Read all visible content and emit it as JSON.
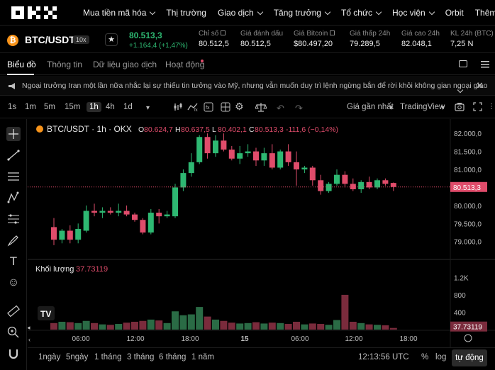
{
  "nav": {
    "logo": "OKX",
    "items": [
      {
        "label": "Mua tiền mã hóa",
        "dropdown": true
      },
      {
        "label": "Thị trường",
        "dropdown": false
      },
      {
        "label": "Giao dịch",
        "dropdown": true
      },
      {
        "label": "Tăng trưởng",
        "dropdown": true
      },
      {
        "label": "Tổ chức",
        "dropdown": true
      },
      {
        "label": "Học viện",
        "dropdown": true
      },
      {
        "label": "Orbit",
        "dropdown": false
      },
      {
        "label": "Thêm",
        "dropdown": true
      }
    ]
  },
  "ticker": {
    "coin_glyph": "₿",
    "pair": "BTC/USDT",
    "leverage": "10x",
    "price": "80.513,3",
    "change": "+1.164,4 (+1,47%)",
    "stats": [
      {
        "label": "Chỉ số",
        "value": "80.512,5",
        "ext": true
      },
      {
        "label": "Giá đánh dấu",
        "value": "80.512,5",
        "ext": false
      },
      {
        "label": "Giá Bitcoin",
        "value": "$80.497,20",
        "ext": true
      },
      {
        "label": "Giá thấp 24h",
        "value": "79.289,5",
        "ext": false
      },
      {
        "label": "Giá cao 24h",
        "value": "82.048,1",
        "ext": false
      },
      {
        "label": "KL 24h (BTC)",
        "value": "7,25 N",
        "ext": false
      }
    ],
    "accent_up": "#2eb872",
    "accent_down": "#e04c6b"
  },
  "tabs": [
    "Biểu đồ",
    "Thông tin",
    "Dữ liệu giao dịch",
    "Hoạt động"
  ],
  "announcement": "Ngoại trưởng Iran một lần nữa nhắc lại sự thiếu tin tưởng vào Mỹ, nhưng vẫn muốn duy trì lệnh ngừng bắn để rời khỏi không gian ngoại giao",
  "toolbar": {
    "timeframes": [
      "1s",
      "1m",
      "5m",
      "15m",
      "1h",
      "4h",
      "1d"
    ],
    "selected": "1h",
    "price_type": "Giá gần nhất",
    "view": "TradingView"
  },
  "legend": {
    "symbol": "BTC/USDT · 1h · OKX",
    "o_label": "O",
    "o": "80.624,7",
    "h_label": "H",
    "h": "80.637,5",
    "l_label": "L",
    "l": "80.402,1",
    "c_label": "C",
    "c": "80.513,3",
    "chg": "-111,6 (−0,14%)"
  },
  "volume_legend": {
    "label": "Khối lượng",
    "value": "37.73119"
  },
  "price_axis": [
    "82.000,0",
    "81.500,0",
    "81.000,0",
    "80.000,0",
    "79.500,0",
    "79.000,0"
  ],
  "last_price": "80.513,3",
  "volume_axis": [
    "1.2K",
    "800",
    "400"
  ],
  "last_volume": "37.73119",
  "time_axis": [
    "06:00",
    "12:00",
    "18:00",
    "15",
    "06:00",
    "12:00",
    "18:00"
  ],
  "tv_logo": "TV",
  "chart_data": {
    "type": "candlestick",
    "interval": "1h",
    "ylim": [
      78700,
      82200
    ],
    "volume_ylim": [
      0,
      1500
    ],
    "candles": [
      {
        "o": 79400,
        "h": 79650,
        "l": 78900,
        "c": 79050,
        "v": 150
      },
      {
        "o": 79050,
        "h": 79350,
        "l": 78950,
        "c": 79300,
        "v": 180
      },
      {
        "o": 79300,
        "h": 79450,
        "l": 78950,
        "c": 79050,
        "v": 170
      },
      {
        "o": 79050,
        "h": 79500,
        "l": 78950,
        "c": 79350,
        "v": 150
      },
      {
        "o": 79300,
        "h": 80000,
        "l": 79250,
        "c": 79850,
        "v": 200
      },
      {
        "o": 79850,
        "h": 80050,
        "l": 79700,
        "c": 79800,
        "v": 150
      },
      {
        "o": 79800,
        "h": 79950,
        "l": 79650,
        "c": 79850,
        "v": 120
      },
      {
        "o": 79850,
        "h": 79950,
        "l": 79750,
        "c": 79800,
        "v": 110
      },
      {
        "o": 79800,
        "h": 80050,
        "l": 79700,
        "c": 79850,
        "v": 130
      },
      {
        "o": 79850,
        "h": 80000,
        "l": 79700,
        "c": 79750,
        "v": 160
      },
      {
        "o": 79750,
        "h": 79800,
        "l": 79550,
        "c": 79600,
        "v": 180
      },
      {
        "o": 79600,
        "h": 79650,
        "l": 79200,
        "c": 79250,
        "v": 200
      },
      {
        "o": 79250,
        "h": 79900,
        "l": 79200,
        "c": 79800,
        "v": 230
      },
      {
        "o": 79800,
        "h": 79900,
        "l": 79500,
        "c": 79700,
        "v": 210
      },
      {
        "o": 79700,
        "h": 79850,
        "l": 79650,
        "c": 79750,
        "v": 150
      },
      {
        "o": 79700,
        "h": 80600,
        "l": 79650,
        "c": 80500,
        "v": 420
      },
      {
        "o": 80500,
        "h": 81000,
        "l": 80400,
        "c": 80900,
        "v": 330
      },
      {
        "o": 80900,
        "h": 81450,
        "l": 80800,
        "c": 81200,
        "v": 350
      },
      {
        "o": 81200,
        "h": 81950,
        "l": 81150,
        "c": 81900,
        "v": 520
      },
      {
        "o": 81900,
        "h": 82000,
        "l": 81300,
        "c": 81450,
        "v": 300
      },
      {
        "o": 81450,
        "h": 81950,
        "l": 81350,
        "c": 81800,
        "v": 230
      },
      {
        "o": 81800,
        "h": 82000,
        "l": 81500,
        "c": 81550,
        "v": 200
      },
      {
        "o": 81550,
        "h": 81650,
        "l": 81250,
        "c": 81300,
        "v": 160
      },
      {
        "o": 81300,
        "h": 81650,
        "l": 81150,
        "c": 81450,
        "v": 140
      },
      {
        "o": 81450,
        "h": 81700,
        "l": 81350,
        "c": 81500,
        "v": 150
      },
      {
        "o": 81500,
        "h": 81600,
        "l": 81100,
        "c": 81250,
        "v": 170
      },
      {
        "o": 81250,
        "h": 81600,
        "l": 81100,
        "c": 81450,
        "v": 140
      },
      {
        "o": 81450,
        "h": 81700,
        "l": 81000,
        "c": 81050,
        "v": 160
      },
      {
        "o": 81050,
        "h": 81550,
        "l": 81000,
        "c": 81500,
        "v": 150
      },
      {
        "o": 81500,
        "h": 81700,
        "l": 81100,
        "c": 81200,
        "v": 130
      },
      {
        "o": 81200,
        "h": 81500,
        "l": 80550,
        "c": 81000,
        "v": 180
      },
      {
        "o": 81000,
        "h": 81100,
        "l": 80900,
        "c": 81050,
        "v": 120
      },
      {
        "o": 81050,
        "h": 81100,
        "l": 80550,
        "c": 80700,
        "v": 140
      },
      {
        "o": 80700,
        "h": 80850,
        "l": 80300,
        "c": 80400,
        "v": 130
      },
      {
        "o": 80400,
        "h": 80650,
        "l": 80350,
        "c": 80600,
        "v": 110
      },
      {
        "o": 80600,
        "h": 81000,
        "l": 80550,
        "c": 80850,
        "v": 220
      },
      {
        "o": 80850,
        "h": 80950,
        "l": 80500,
        "c": 80600,
        "v": 800
      },
      {
        "o": 80600,
        "h": 80750,
        "l": 80400,
        "c": 80450,
        "v": 180
      },
      {
        "o": 80450,
        "h": 80700,
        "l": 80350,
        "c": 80650,
        "v": 150
      },
      {
        "o": 80650,
        "h": 80800,
        "l": 80450,
        "c": 80500,
        "v": 120
      },
      {
        "o": 80500,
        "h": 80750,
        "l": 80450,
        "c": 80700,
        "v": 110
      },
      {
        "o": 80700,
        "h": 80750,
        "l": 80550,
        "c": 80600,
        "v": 100
      },
      {
        "o": 80624.7,
        "h": 80637.5,
        "l": 80402.1,
        "c": 80513.3,
        "v": 37.7
      }
    ]
  }
}
